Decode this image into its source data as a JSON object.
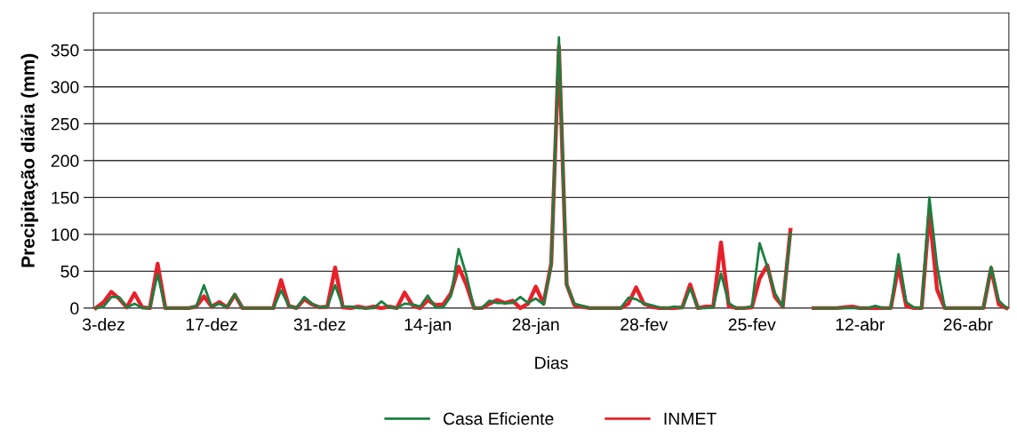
{
  "chart_data": {
    "type": "line",
    "xlabel": "Dias",
    "ylabel": "Precipitação diária (mm)",
    "categories": [
      null,
      "3-dez",
      null,
      null,
      null,
      null,
      null,
      null,
      null,
      null,
      null,
      null,
      null,
      null,
      null,
      "17-dez",
      null,
      null,
      null,
      null,
      null,
      null,
      null,
      null,
      null,
      null,
      null,
      null,
      null,
      "31-dez",
      null,
      null,
      null,
      null,
      null,
      null,
      null,
      null,
      null,
      null,
      null,
      null,
      null,
      "14-jan",
      null,
      null,
      null,
      null,
      null,
      null,
      null,
      null,
      null,
      null,
      null,
      null,
      null,
      "28-jan",
      null,
      null,
      null,
      null,
      null,
      null,
      null,
      null,
      null,
      null,
      null,
      null,
      null,
      "28-fev",
      null,
      null,
      null,
      null,
      null,
      null,
      null,
      null,
      null,
      null,
      null,
      null,
      null,
      "25-fev",
      null,
      null,
      null,
      null,
      null,
      null,
      null,
      null,
      null,
      null,
      null,
      null,
      null,
      "12-abr",
      null,
      null,
      null,
      null,
      null,
      null,
      null,
      null,
      null,
      null,
      null,
      null,
      null,
      "26-abr",
      null,
      null,
      null,
      null,
      null
    ],
    "series": [
      {
        "name": "Casa Eficiente",
        "color": "#1a8040",
        "values": [
          0,
          2,
          15,
          15,
          1,
          6,
          0,
          0,
          46,
          0,
          0,
          0,
          0,
          2,
          31,
          2,
          6,
          1,
          19,
          0,
          0,
          0,
          0,
          0,
          24,
          3,
          0,
          15,
          6,
          1,
          2,
          31,
          2,
          2,
          0,
          0,
          0,
          9,
          1,
          0,
          6,
          5,
          2,
          17,
          1,
          1,
          16,
          80,
          45,
          0,
          0,
          10,
          7,
          7,
          7,
          15,
          7,
          13,
          5,
          58,
          367,
          32,
          6,
          3,
          0,
          0,
          0,
          0,
          0,
          14,
          12,
          6,
          4,
          1,
          0,
          2,
          0,
          27,
          0,
          0,
          1,
          47,
          7,
          0,
          0,
          2,
          88,
          56,
          20,
          2,
          102,
          null,
          null,
          0,
          0,
          0,
          0,
          0,
          0,
          0,
          0,
          3,
          0,
          0,
          73,
          8,
          1,
          0,
          150,
          57,
          0,
          0,
          0,
          0,
          0,
          0,
          56,
          10,
          0
        ]
      },
      {
        "name": "INMET",
        "color": "#e8202a",
        "values": [
          0,
          8,
          22,
          13,
          1,
          20,
          1,
          0,
          60,
          0,
          0,
          0,
          0,
          2,
          16,
          2,
          8,
          1,
          18,
          0,
          0,
          0,
          0,
          0,
          38,
          3,
          0,
          12,
          5,
          1,
          2,
          55,
          1,
          0,
          2,
          0,
          2,
          0,
          2,
          0,
          21,
          4,
          0,
          11,
          4,
          5,
          20,
          56,
          32,
          0,
          0,
          6,
          11,
          7,
          10,
          0,
          6,
          29,
          6,
          60,
          355,
          32,
          4,
          2,
          0,
          0,
          0,
          0,
          0,
          6,
          28,
          6,
          2,
          0,
          0,
          0,
          1,
          32,
          0,
          2,
          2,
          89,
          3,
          0,
          0,
          1,
          40,
          58,
          15,
          2,
          106,
          null,
          null,
          0,
          0,
          0,
          0,
          1,
          2,
          0,
          0,
          0,
          0,
          0,
          57,
          3,
          0,
          0,
          130,
          25,
          0,
          0,
          0,
          0,
          0,
          0,
          54,
          5,
          0
        ]
      }
    ],
    "ylim": [
      0,
      400
    ],
    "yticks": [
      0,
      50,
      100,
      150,
      200,
      250,
      300,
      350
    ],
    "grid": "y",
    "legend": "bottom"
  }
}
